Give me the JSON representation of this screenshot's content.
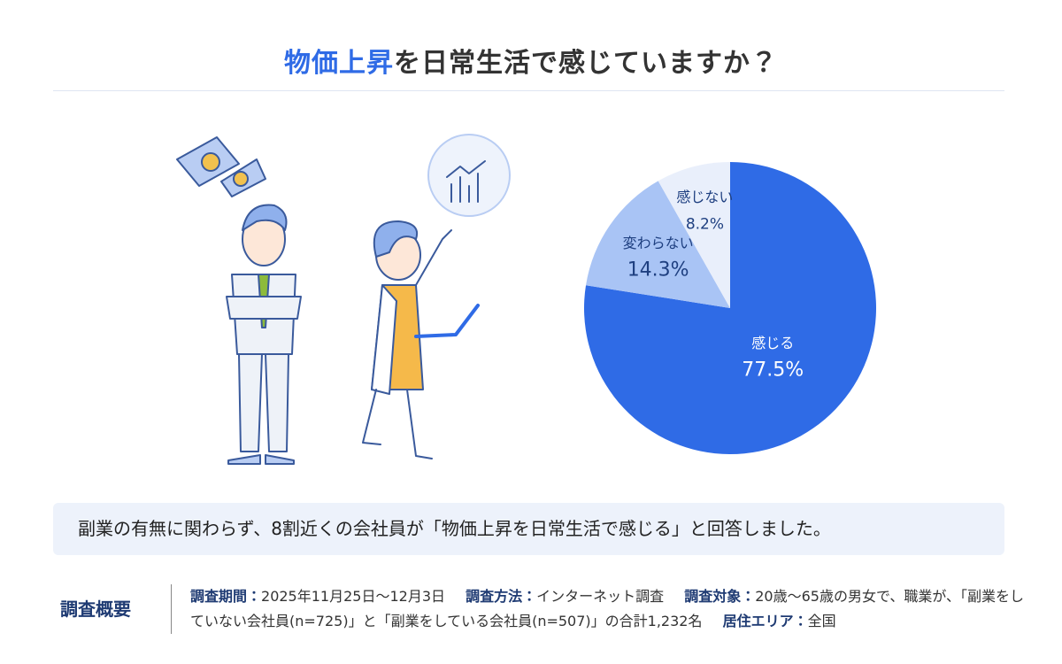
{
  "header": {
    "title_highlight": "物価上昇",
    "title_rest": "を日常生活で感じていますか？"
  },
  "chart_data": {
    "type": "pie",
    "categories": [
      "感じる",
      "変わらない",
      "感じない"
    ],
    "values": [
      77.5,
      14.3,
      8.2
    ],
    "value_labels": [
      "77.5%",
      "14.3%",
      "8.2%"
    ],
    "colors": [
      "#2f6be6",
      "#a9c4f5",
      "#e9effb"
    ],
    "label_colors": [
      "#ffffff",
      "#1e3f80",
      "#1e3f80"
    ]
  },
  "summary": "副業の有無に関わらず、8割近くの会社員が「物価上昇を日常生活で感じる」と回答しました。",
  "survey": {
    "heading": "調査概要",
    "items": [
      {
        "label": "調査期間：",
        "text": "2025年11月25日〜12月3日"
      },
      {
        "label": "調査方法：",
        "text": "インターネット調査"
      },
      {
        "label": "調査対象：",
        "text": "20歳〜65歳の男女で、職業が、「副業をしていない会社員(n=725)」と「副業をしている会社員(n=507)」の合計1,232名"
      },
      {
        "label": "居住エリア：",
        "text": "全国"
      }
    ]
  }
}
